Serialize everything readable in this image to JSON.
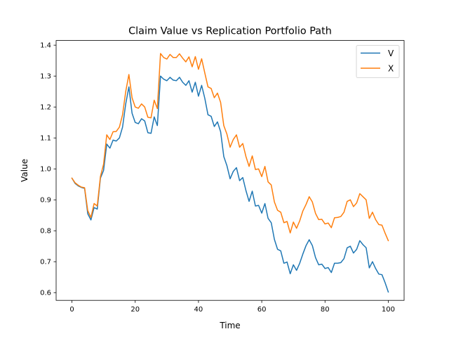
{
  "chart_data": {
    "type": "line",
    "title": "Claim Value vs Replication Portfolio Path",
    "xlabel": "Time",
    "ylabel": "Value",
    "xlim": [
      -5,
      105
    ],
    "ylim": [
      0.575,
      1.415
    ],
    "xticks": [
      0,
      20,
      40,
      60,
      80,
      100
    ],
    "yticks": [
      0.6,
      0.7,
      0.8,
      0.9,
      1.0,
      1.1,
      1.2,
      1.3,
      1.4
    ],
    "xtick_labels": [
      "0",
      "20",
      "40",
      "60",
      "80",
      "100"
    ],
    "ytick_labels": [
      "0.6",
      "0.7",
      "0.8",
      "0.9",
      "1.0",
      "1.1",
      "1.2",
      "1.3",
      "1.4"
    ],
    "grid": false,
    "legend_position": "top-right",
    "x": [
      0,
      1,
      2,
      3,
      4,
      5,
      6,
      7,
      8,
      9,
      10,
      11,
      12,
      13,
      14,
      15,
      16,
      17,
      18,
      19,
      20,
      21,
      22,
      23,
      24,
      25,
      26,
      27,
      28,
      29,
      30,
      31,
      32,
      33,
      34,
      35,
      36,
      37,
      38,
      39,
      40,
      41,
      42,
      43,
      44,
      45,
      46,
      47,
      48,
      49,
      50,
      51,
      52,
      53,
      54,
      55,
      56,
      57,
      58,
      59,
      60,
      61,
      62,
      63,
      64,
      65,
      66,
      67,
      68,
      69,
      70,
      71,
      72,
      73,
      74,
      75,
      76,
      77,
      78,
      79,
      80,
      81,
      82,
      83,
      84,
      85,
      86,
      87,
      88,
      89,
      90,
      91,
      92,
      93,
      94,
      95,
      96,
      97,
      98,
      99,
      100
    ],
    "series": [
      {
        "name": "V",
        "color": "#1f77b4",
        "values": [
          0.97,
          0.953,
          0.945,
          0.94,
          0.937,
          0.855,
          0.835,
          0.875,
          0.87,
          0.97,
          0.995,
          1.08,
          1.067,
          1.093,
          1.09,
          1.1,
          1.135,
          1.21,
          1.265,
          1.18,
          1.15,
          1.146,
          1.162,
          1.155,
          1.117,
          1.115,
          1.168,
          1.14,
          1.3,
          1.29,
          1.285,
          1.296,
          1.287,
          1.285,
          1.296,
          1.28,
          1.27,
          1.285,
          1.248,
          1.28,
          1.235,
          1.27,
          1.228,
          1.175,
          1.17,
          1.137,
          1.152,
          1.12,
          1.04,
          1.01,
          0.968,
          0.992,
          1.004,
          0.962,
          0.972,
          0.93,
          0.895,
          0.928,
          0.88,
          0.882,
          0.857,
          0.888,
          0.84,
          0.826,
          0.772,
          0.74,
          0.735,
          0.695,
          0.699,
          0.661,
          0.69,
          0.672,
          0.695,
          0.725,
          0.752,
          0.771,
          0.752,
          0.713,
          0.69,
          0.692,
          0.678,
          0.681,
          0.665,
          0.695,
          0.695,
          0.697,
          0.71,
          0.745,
          0.75,
          0.728,
          0.74,
          0.768,
          0.755,
          0.745,
          0.68,
          0.7,
          0.678,
          0.66,
          0.658,
          0.632,
          0.602
        ]
      },
      {
        "name": "X",
        "color": "#ff7f0e",
        "values": [
          0.97,
          0.955,
          0.947,
          0.941,
          0.939,
          0.865,
          0.843,
          0.888,
          0.88,
          0.975,
          1.015,
          1.11,
          1.095,
          1.12,
          1.121,
          1.135,
          1.175,
          1.25,
          1.305,
          1.23,
          1.2,
          1.196,
          1.21,
          1.2,
          1.167,
          1.165,
          1.222,
          1.195,
          1.373,
          1.36,
          1.355,
          1.37,
          1.36,
          1.36,
          1.372,
          1.358,
          1.346,
          1.362,
          1.33,
          1.363,
          1.322,
          1.356,
          1.31,
          1.265,
          1.26,
          1.23,
          1.245,
          1.215,
          1.14,
          1.112,
          1.07,
          1.095,
          1.11,
          1.07,
          1.082,
          1.04,
          1.008,
          1.042,
          0.998,
          1.0,
          0.975,
          1.008,
          0.958,
          0.948,
          0.893,
          0.866,
          0.86,
          0.826,
          0.83,
          0.793,
          0.828,
          0.808,
          0.832,
          0.864,
          0.885,
          0.91,
          0.893,
          0.856,
          0.836,
          0.837,
          0.822,
          0.825,
          0.81,
          0.842,
          0.843,
          0.846,
          0.86,
          0.895,
          0.9,
          0.878,
          0.89,
          0.92,
          0.91,
          0.9,
          0.84,
          0.86,
          0.836,
          0.82,
          0.818,
          0.792,
          0.768
        ]
      }
    ]
  }
}
